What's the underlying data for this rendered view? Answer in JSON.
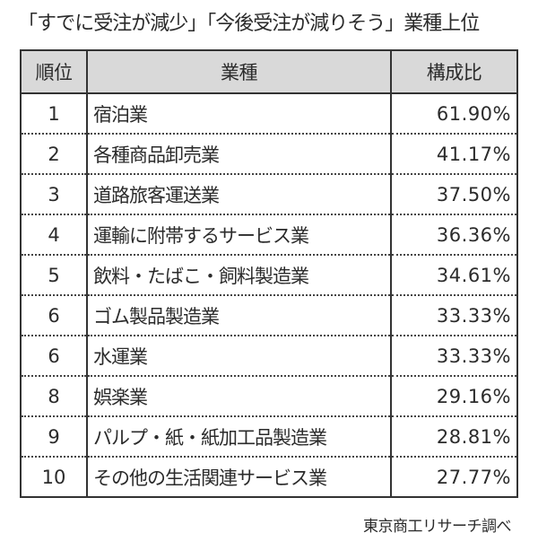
{
  "title": "「すでに受注が減少」「今後受注が減りそう」業種上位",
  "table": {
    "headers": {
      "rank": "順位",
      "industry": "業種",
      "ratio": "構成比"
    },
    "rows": [
      {
        "rank": "1",
        "industry": "宿泊業",
        "ratio": "61.90%"
      },
      {
        "rank": "2",
        "industry": "各種商品卸売業",
        "ratio": "41.17%"
      },
      {
        "rank": "3",
        "industry": "道路旅客運送業",
        "ratio": "37.50%"
      },
      {
        "rank": "4",
        "industry": "運輸に附帯するサービス業",
        "ratio": "36.36%"
      },
      {
        "rank": "5",
        "industry": "飲料・たばこ・飼料製造業",
        "ratio": "34.61%"
      },
      {
        "rank": "6",
        "industry": "ゴム製品製造業",
        "ratio": "33.33%"
      },
      {
        "rank": "6",
        "industry": "水運業",
        "ratio": "33.33%"
      },
      {
        "rank": "8",
        "industry": "娯楽業",
        "ratio": "29.16%"
      },
      {
        "rank": "9",
        "industry": "パルプ・紙・紙加工品製造業",
        "ratio": "28.81%"
      },
      {
        "rank": "10",
        "industry": "その他の生活関連サービス業",
        "ratio": "27.77%"
      }
    ]
  },
  "source": "東京商工リサーチ調べ",
  "colors": {
    "header_bg": "#d9d9d9",
    "border": "#333333",
    "text": "#2b2b2b"
  }
}
